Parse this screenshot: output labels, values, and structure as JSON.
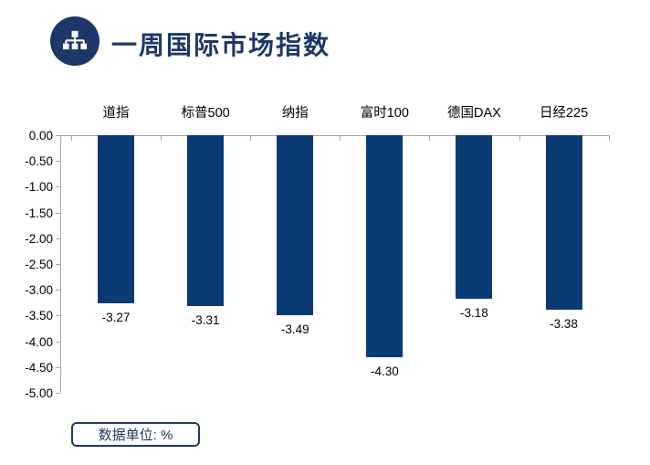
{
  "header": {
    "title": "一周国际市场指数",
    "icon": "sitemap-icon"
  },
  "chart_data": {
    "type": "bar",
    "title": "一周国际市场指数",
    "categories": [
      "道指",
      "标普500",
      "纳指",
      "富时100",
      "德国DAX",
      "日经225"
    ],
    "values": [
      -3.27,
      -3.31,
      -3.49,
      -4.3,
      -3.18,
      -3.38
    ],
    "value_labels": [
      "-3.27",
      "-3.31",
      "-3.49",
      "-4.30",
      "-3.18",
      "-3.38"
    ],
    "ylim": [
      -5,
      0
    ],
    "ytick_step": 0.5,
    "ytick_labels": [
      "0.00",
      "-0.50",
      "-1.00",
      "-1.50",
      "-2.00",
      "-2.50",
      "-3.00",
      "-3.50",
      "-4.00",
      "-4.50",
      "-5.00"
    ],
    "xlabel": "",
    "ylabel": "",
    "grid": false,
    "legend": "none",
    "category_labels_position": "above-zero-line",
    "bar_color": "#0A3A74",
    "axis_color": "#A6A6A6",
    "label_color": "#000000"
  },
  "footer": {
    "unit_label": "数据单位: %"
  }
}
